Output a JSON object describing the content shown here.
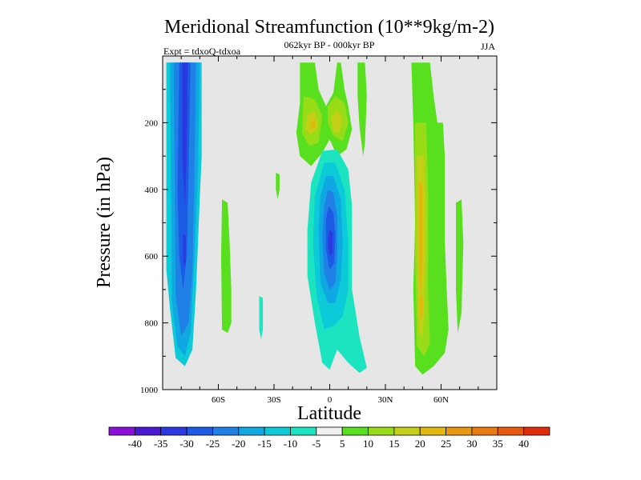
{
  "chart_data": {
    "type": "filled-contour",
    "title": "Meridional Streamfunction (10**9kg/m-2)",
    "subtitle": "062kyr BP - 000kyr BP",
    "experiment_label": "Expt = tdxoQ-tdxoa",
    "season": "JJA",
    "xlabel": "Latitude",
    "ylabel": "Pressure (in hPa)",
    "xlim": [
      -90,
      90
    ],
    "ylim": [
      1000,
      0
    ],
    "x_tick_labels": [
      {
        "value": -60,
        "label": "60S"
      },
      {
        "value": -30,
        "label": "30S"
      },
      {
        "value": 0,
        "label": "0"
      },
      {
        "value": 30,
        "label": "30N"
      },
      {
        "value": 60,
        "label": "60N"
      }
    ],
    "y_tick_labels": [
      {
        "value": 200,
        "label": "200"
      },
      {
        "value": 400,
        "label": "400"
      },
      {
        "value": 600,
        "label": "600"
      },
      {
        "value": 800,
        "label": "800"
      },
      {
        "value": 1000,
        "label": "1000"
      }
    ],
    "background_color": "#e6e6e6",
    "colorbar": {
      "boundary_labels": [
        "-40",
        "-35",
        "-30",
        "-25",
        "-20",
        "-15",
        "-10",
        "-5",
        "5",
        "10",
        "15",
        "20",
        "25",
        "30",
        "35",
        "40"
      ],
      "colors": [
        "#8a10d8",
        "#4a18d2",
        "#2a3ae0",
        "#1c5ae6",
        "#1f80e6",
        "#10a8e2",
        "#0ccad8",
        "#1ce4c0",
        "#f0f0f0",
        "#58e01e",
        "#98dc18",
        "#c4d018",
        "#e2b80c",
        "#e8980e",
        "#e87a10",
        "#e85a10",
        "#e02c08"
      ]
    },
    "features": [
      {
        "name": "SH cell",
        "category": "negative",
        "lat": [
          -88,
          -72
        ],
        "p": [
          20,
          950
        ],
        "min_approx": -30
      },
      {
        "name": "Tropical negative cell",
        "category": "negative",
        "lat": [
          -6,
          14
        ],
        "p": [
          290,
          940
        ],
        "min_approx": -25
      },
      {
        "name": "Upper tropical positive lobe west",
        "category": "positive",
        "lat": [
          -12,
          -4
        ],
        "p": [
          140,
          300
        ],
        "max_approx": 20
      },
      {
        "name": "Upper tropical positive lobe east",
        "category": "positive",
        "lat": [
          2,
          10
        ],
        "p": [
          140,
          260
        ],
        "max_approx": 20
      },
      {
        "name": "NH mid-latitude positive band",
        "category": "positive",
        "lat": [
          46,
          58
        ],
        "p": [
          20,
          950
        ],
        "max_approx": 25
      },
      {
        "name": "SH mid-latitude positive strip",
        "category": "positive",
        "lat": [
          -58,
          -53
        ],
        "p": [
          430,
          830
        ],
        "max_approx": 10
      }
    ]
  }
}
